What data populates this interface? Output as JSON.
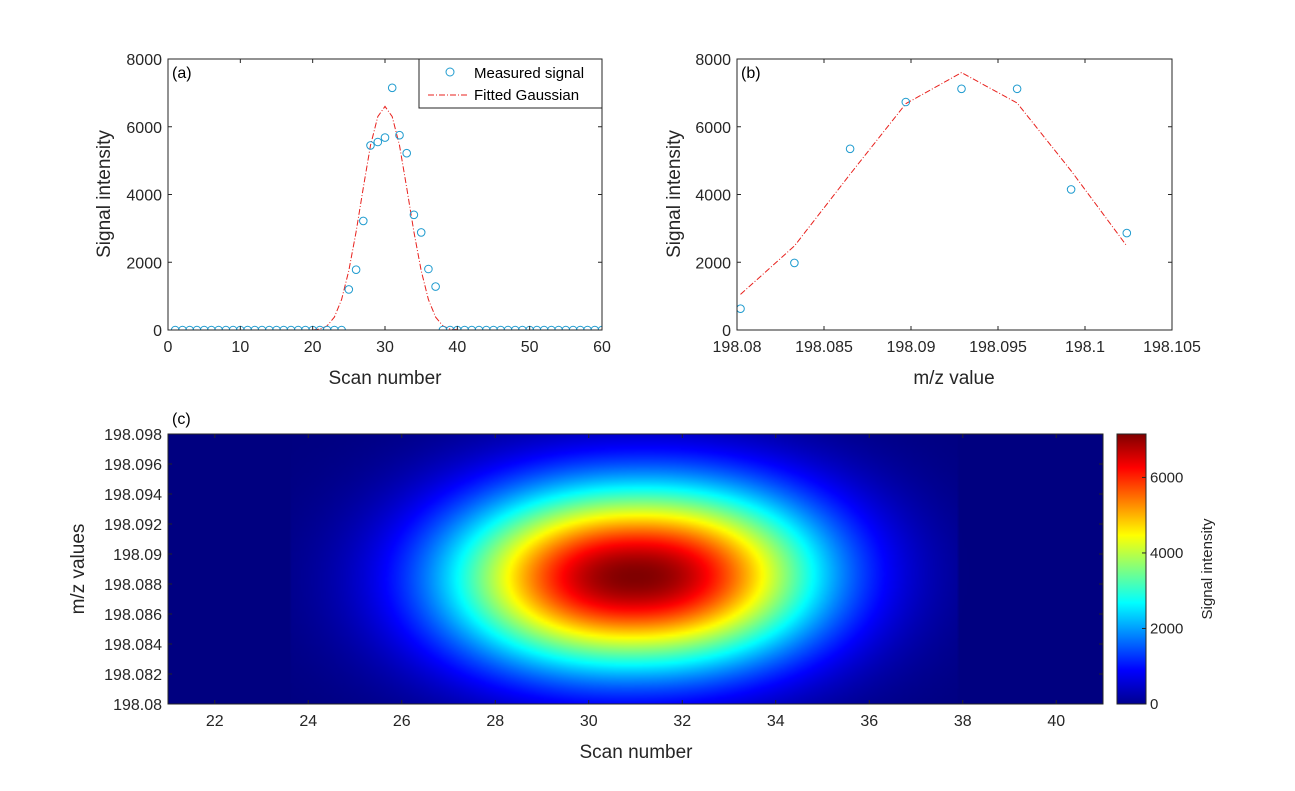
{
  "chart_data": [
    {
      "type": "scatter",
      "panel_label": "(a)",
      "xlabel": "Scan number",
      "ylabel": "Signal intensity",
      "xlim": [
        0,
        60
      ],
      "ylim": [
        0,
        8000
      ],
      "xticks": [
        "0",
        "10",
        "20",
        "30",
        "40",
        "50",
        "60"
      ],
      "yticks": [
        "0",
        "2000",
        "4000",
        "6000",
        "8000"
      ],
      "legend": [
        "Measured signal",
        "Fitted Gaussian"
      ],
      "legend_position": "top-right",
      "series": [
        {
          "name": "Measured signal",
          "style": "markers",
          "x": [
            1,
            2,
            3,
            4,
            5,
            6,
            7,
            8,
            9,
            10,
            11,
            12,
            13,
            14,
            15,
            16,
            17,
            18,
            19,
            20,
            21,
            22,
            23,
            24,
            25,
            26,
            27,
            28,
            29,
            30,
            31,
            32,
            33,
            34,
            35,
            36,
            37,
            38,
            39,
            40,
            41,
            42,
            43,
            44,
            45,
            46,
            47,
            48,
            49,
            50,
            51,
            52,
            53,
            54,
            55,
            56,
            57,
            58,
            59,
            60
          ],
          "y": [
            0,
            0,
            0,
            0,
            0,
            0,
            0,
            0,
            0,
            0,
            0,
            0,
            0,
            0,
            0,
            0,
            0,
            0,
            0,
            0,
            0,
            0,
            0,
            0,
            1200,
            1780,
            3220,
            5450,
            5550,
            5680,
            7150,
            5750,
            5220,
            3400,
            2880,
            1800,
            1280,
            0,
            0,
            0,
            0,
            0,
            0,
            0,
            0,
            0,
            0,
            0,
            0,
            0,
            0,
            0,
            0,
            0,
            0,
            0,
            0,
            0,
            0,
            0
          ]
        },
        {
          "name": "Fitted Gaussian",
          "style": "dash-dot",
          "x": [
            20,
            21,
            22,
            23,
            24,
            25,
            26,
            27,
            28,
            29,
            30,
            31,
            32,
            33,
            34,
            35,
            36,
            37,
            38,
            39,
            40,
            41,
            42
          ],
          "y": [
            0,
            30,
            120,
            380,
            900,
            1750,
            2900,
            4200,
            5450,
            6300,
            6600,
            6300,
            5450,
            4200,
            2900,
            1750,
            900,
            380,
            120,
            30,
            5,
            0,
            0
          ]
        }
      ]
    },
    {
      "type": "scatter",
      "panel_label": "(b)",
      "xlabel": "m/z value",
      "ylabel": "Signal intensity",
      "xlim": [
        198.08,
        198.105
      ],
      "ylim": [
        0,
        8000
      ],
      "xticks": [
        "198.08",
        "198.085",
        "198.09",
        "198.095",
        "198.1",
        "198.105"
      ],
      "yticks": [
        "0",
        "2000",
        "4000",
        "6000",
        "8000"
      ],
      "series": [
        {
          "name": "Measured signal",
          "style": "markers",
          "x": [
            198.0802,
            198.0833,
            198.0865,
            198.0897,
            198.0929,
            198.0961,
            198.0992,
            198.1024
          ],
          "y": [
            630,
            1980,
            5350,
            6730,
            7120,
            7120,
            4150,
            2860
          ]
        },
        {
          "name": "Fitted Gaussian",
          "style": "dash-dot",
          "x": [
            198.0802,
            198.0833,
            198.0865,
            198.0897,
            198.0929,
            198.0961,
            198.0992,
            198.1024
          ],
          "y": [
            1050,
            2480,
            4600,
            6680,
            7600,
            6700,
            4700,
            2480
          ]
        }
      ]
    },
    {
      "type": "heatmap",
      "panel_label": "(c)",
      "xlabel": "Scan number",
      "ylabel": "m/z values",
      "xlim": [
        21,
        41
      ],
      "ylim": [
        198.08,
        198.098
      ],
      "xticks": [
        "22",
        "24",
        "26",
        "28",
        "30",
        "32",
        "34",
        "36",
        "38",
        "40"
      ],
      "yticks": [
        "198.08",
        "198.082",
        "198.084",
        "198.086",
        "198.088",
        "198.09",
        "198.092",
        "198.094",
        "198.096",
        "198.098"
      ],
      "colorbar_label": "Signal intensity",
      "colorbar_ticks": [
        "0",
        "2000",
        "4000",
        "6000"
      ],
      "zlim": [
        0,
        7150
      ],
      "peak": {
        "scan": 31,
        "mz": 198.0885,
        "intensity": 7150
      },
      "spread": {
        "scan_sigma": 2.8,
        "mz_sigma": 0.0042
      }
    }
  ],
  "colors": {
    "marker": "#1f9bcf",
    "fit_line": "#e8201c",
    "axis": "#262626"
  }
}
